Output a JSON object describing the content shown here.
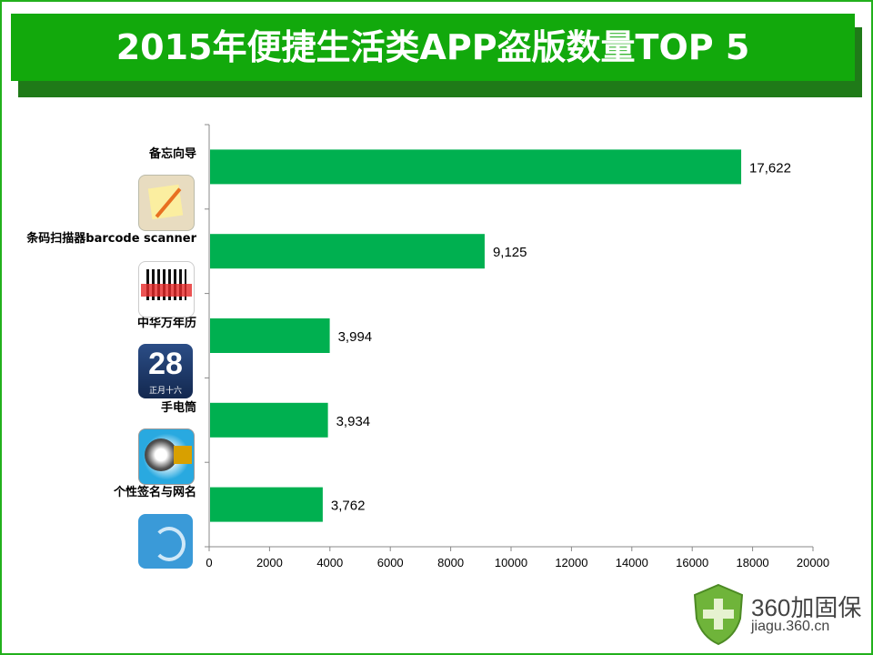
{
  "title": "2015年便捷生活类APP盗版数量TOP 5",
  "chart_data": {
    "type": "bar",
    "orientation": "horizontal",
    "title": "2015年便捷生活类APP盗版数量TOP 5",
    "categories": [
      "备忘向导",
      "条码扫描器barcode scanner",
      "中华万年历",
      "手电筒",
      "个性签名与网名"
    ],
    "values": [
      17622,
      9125,
      3994,
      3934,
      3762
    ],
    "value_labels": [
      "17,622",
      "9,125",
      "3,994",
      "3,934",
      "3,762"
    ],
    "xlim": [
      0,
      20000
    ],
    "xticks": [
      "0",
      "2000",
      "4000",
      "6000",
      "8000",
      "10000",
      "12000",
      "14000",
      "16000",
      "18000",
      "20000"
    ],
    "bar_color": "#00b050",
    "grid": false
  },
  "icons": {
    "calendar_day": "28",
    "calendar_sub": "正月十六"
  },
  "logo": {
    "name": "360加固保",
    "url": "jiagu.360.cn"
  }
}
